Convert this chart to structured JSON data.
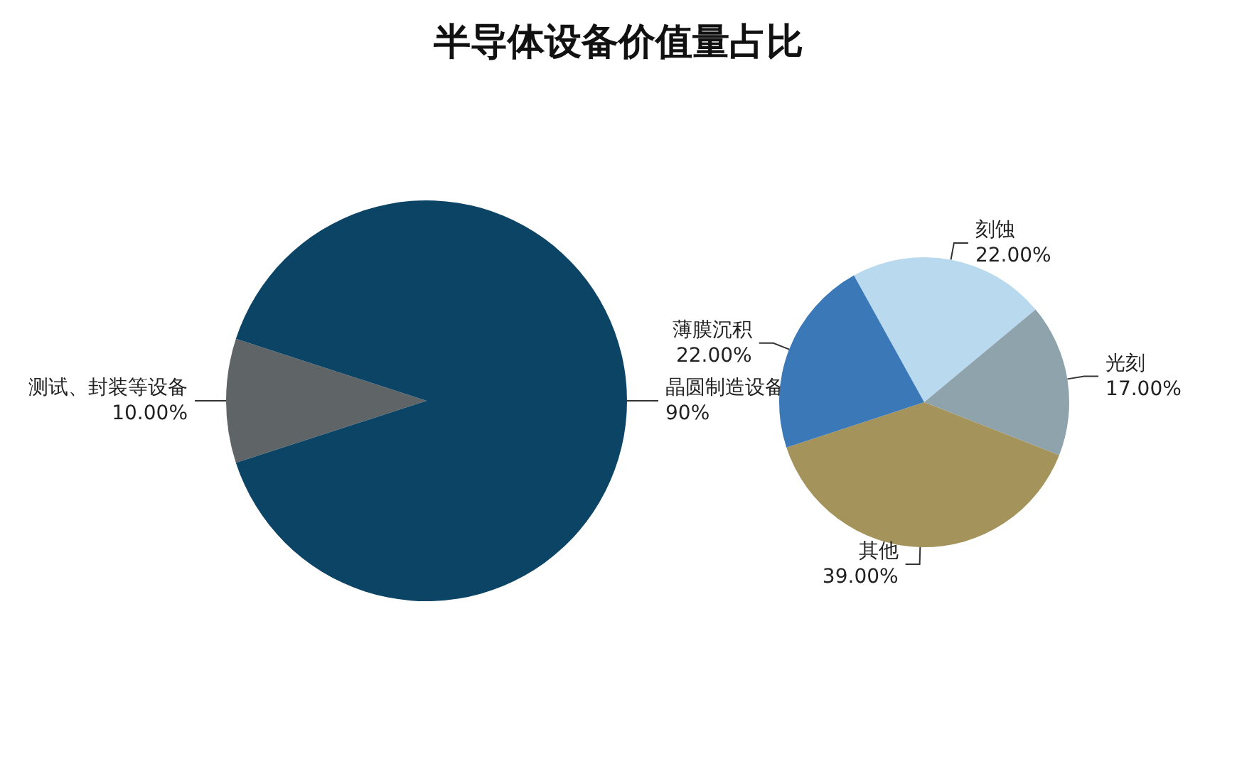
{
  "chart_data": [
    {
      "type": "pie",
      "title": "半导体设备价值量占比",
      "categories": [
        "测试、封装等设备",
        "晶圆制造设备"
      ],
      "values": [
        10,
        90
      ],
      "colors": [
        "#5f6466",
        "#0c4466"
      ],
      "value_labels": [
        "10.00%",
        "90%"
      ],
      "legend": false
    },
    {
      "type": "pie",
      "categories": [
        "刻蚀",
        "光刻",
        "其他",
        "薄膜沉积"
      ],
      "values": [
        22,
        17,
        39,
        22
      ],
      "colors": [
        "#b9d9ee",
        "#8fa3ad",
        "#a4935a",
        "#3a78b8"
      ],
      "value_labels": [
        "22.00%",
        "17.00%",
        "39.00%",
        "22.00%"
      ],
      "legend": false
    }
  ]
}
